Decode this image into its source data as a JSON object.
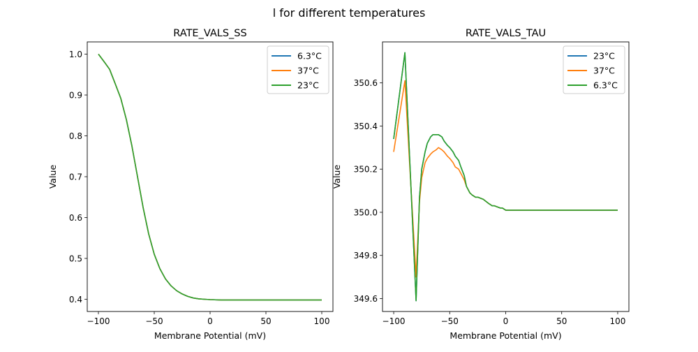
{
  "suptitle": "l for different temperatures",
  "chart_data": [
    {
      "type": "line",
      "title": "RATE_VALS_SS",
      "xlabel": "Membrane Potential (mV)",
      "ylabel": "Value",
      "xlim": [
        -110,
        110
      ],
      "ylim": [
        0.37,
        1.03
      ],
      "xticks": [
        -100,
        -50,
        0,
        50,
        100
      ],
      "xtick_labels": [
        "−100",
        "−50",
        "0",
        "50",
        "100"
      ],
      "yticks": [
        0.4,
        0.5,
        0.6,
        0.7,
        0.8,
        0.9,
        1.0
      ],
      "ytick_labels": [
        "0.4",
        "0.5",
        "0.6",
        "0.7",
        "0.8",
        "0.9",
        "1.0"
      ],
      "legend_position": "top-right",
      "x": [
        -100,
        -95,
        -90,
        -85,
        -80,
        -75,
        -70,
        -65,
        -60,
        -55,
        -50,
        -45,
        -40,
        -35,
        -30,
        -25,
        -20,
        -15,
        -10,
        -5,
        0,
        10,
        20,
        30,
        40,
        50,
        60,
        70,
        80,
        90,
        100
      ],
      "series": [
        {
          "name": "6.3°C",
          "color": "#1f77b4",
          "values": [
            1.0,
            0.982,
            0.963,
            0.928,
            0.892,
            0.84,
            0.775,
            0.7,
            0.625,
            0.56,
            0.51,
            0.475,
            0.45,
            0.433,
            0.421,
            0.413,
            0.407,
            0.403,
            0.401,
            0.4,
            0.399,
            0.398,
            0.398,
            0.398,
            0.398,
            0.398,
            0.398,
            0.398,
            0.398,
            0.398,
            0.398
          ]
        },
        {
          "name": "37°C",
          "color": "#ff7f0e",
          "values": [
            1.0,
            0.982,
            0.963,
            0.928,
            0.892,
            0.84,
            0.775,
            0.7,
            0.625,
            0.56,
            0.51,
            0.475,
            0.45,
            0.433,
            0.421,
            0.413,
            0.407,
            0.403,
            0.401,
            0.4,
            0.399,
            0.398,
            0.398,
            0.398,
            0.398,
            0.398,
            0.398,
            0.398,
            0.398,
            0.398,
            0.398
          ]
        },
        {
          "name": "23°C",
          "color": "#2ca02c",
          "values": [
            1.0,
            0.982,
            0.963,
            0.928,
            0.892,
            0.84,
            0.775,
            0.7,
            0.625,
            0.56,
            0.51,
            0.475,
            0.45,
            0.433,
            0.421,
            0.413,
            0.407,
            0.403,
            0.401,
            0.4,
            0.399,
            0.398,
            0.398,
            0.398,
            0.398,
            0.398,
            0.398,
            0.398,
            0.398,
            0.398,
            0.398
          ]
        }
      ]
    },
    {
      "type": "line",
      "title": "RATE_VALS_TAU",
      "xlabel": "Membrane Potential (mV)",
      "ylabel": "Value",
      "xlim": [
        -110,
        110
      ],
      "ylim": [
        349.54,
        350.79
      ],
      "xticks": [
        -100,
        -50,
        0,
        50,
        100
      ],
      "xtick_labels": [
        "−100",
        "−50",
        "0",
        "50",
        "100"
      ],
      "yticks": [
        349.6,
        349.8,
        350.0,
        350.2,
        350.4,
        350.6
      ],
      "ytick_labels": [
        "349.6",
        "349.8",
        "350.0",
        "350.2",
        "350.4",
        "350.6"
      ],
      "legend_position": "top-right",
      "x": [
        -100,
        -90,
        -80,
        -77,
        -75,
        -72,
        -70,
        -67,
        -65,
        -62,
        -60,
        -57,
        -55,
        -52,
        -50,
        -47,
        -45,
        -42,
        -40,
        -37,
        -35,
        -32,
        -30,
        -27,
        -25,
        -20,
        -15,
        -12,
        -10,
        -5,
        -3,
        0,
        50,
        100
      ],
      "series": [
        {
          "name": "23°C",
          "color": "#1f77b4",
          "values": [
            350.34,
            350.74,
            349.59,
            350.07,
            350.2,
            350.28,
            350.32,
            350.35,
            350.36,
            350.36,
            350.36,
            350.35,
            350.33,
            350.31,
            350.3,
            350.28,
            350.26,
            350.24,
            350.21,
            350.17,
            350.12,
            350.09,
            350.08,
            350.07,
            350.07,
            350.06,
            350.04,
            350.03,
            350.03,
            350.02,
            350.02,
            350.01,
            350.01,
            350.01
          ]
        },
        {
          "name": "37°C",
          "color": "#ff7f0e",
          "values": [
            350.28,
            350.61,
            349.7,
            350.05,
            350.16,
            350.23,
            350.25,
            350.27,
            350.28,
            350.29,
            350.3,
            350.29,
            350.28,
            350.26,
            350.25,
            350.23,
            350.21,
            350.2,
            350.18,
            350.15,
            350.12,
            350.09,
            350.08,
            350.07,
            350.07,
            350.06,
            350.04,
            350.03,
            350.03,
            350.02,
            350.02,
            350.01,
            350.01,
            350.01
          ]
        },
        {
          "name": "6.3°C",
          "color": "#2ca02c",
          "values": [
            350.34,
            350.74,
            349.59,
            350.07,
            350.2,
            350.28,
            350.32,
            350.35,
            350.36,
            350.36,
            350.36,
            350.35,
            350.33,
            350.31,
            350.3,
            350.28,
            350.26,
            350.24,
            350.21,
            350.17,
            350.12,
            350.09,
            350.08,
            350.07,
            350.07,
            350.06,
            350.04,
            350.03,
            350.03,
            350.02,
            350.02,
            350.01,
            350.01,
            350.01
          ]
        }
      ]
    }
  ]
}
